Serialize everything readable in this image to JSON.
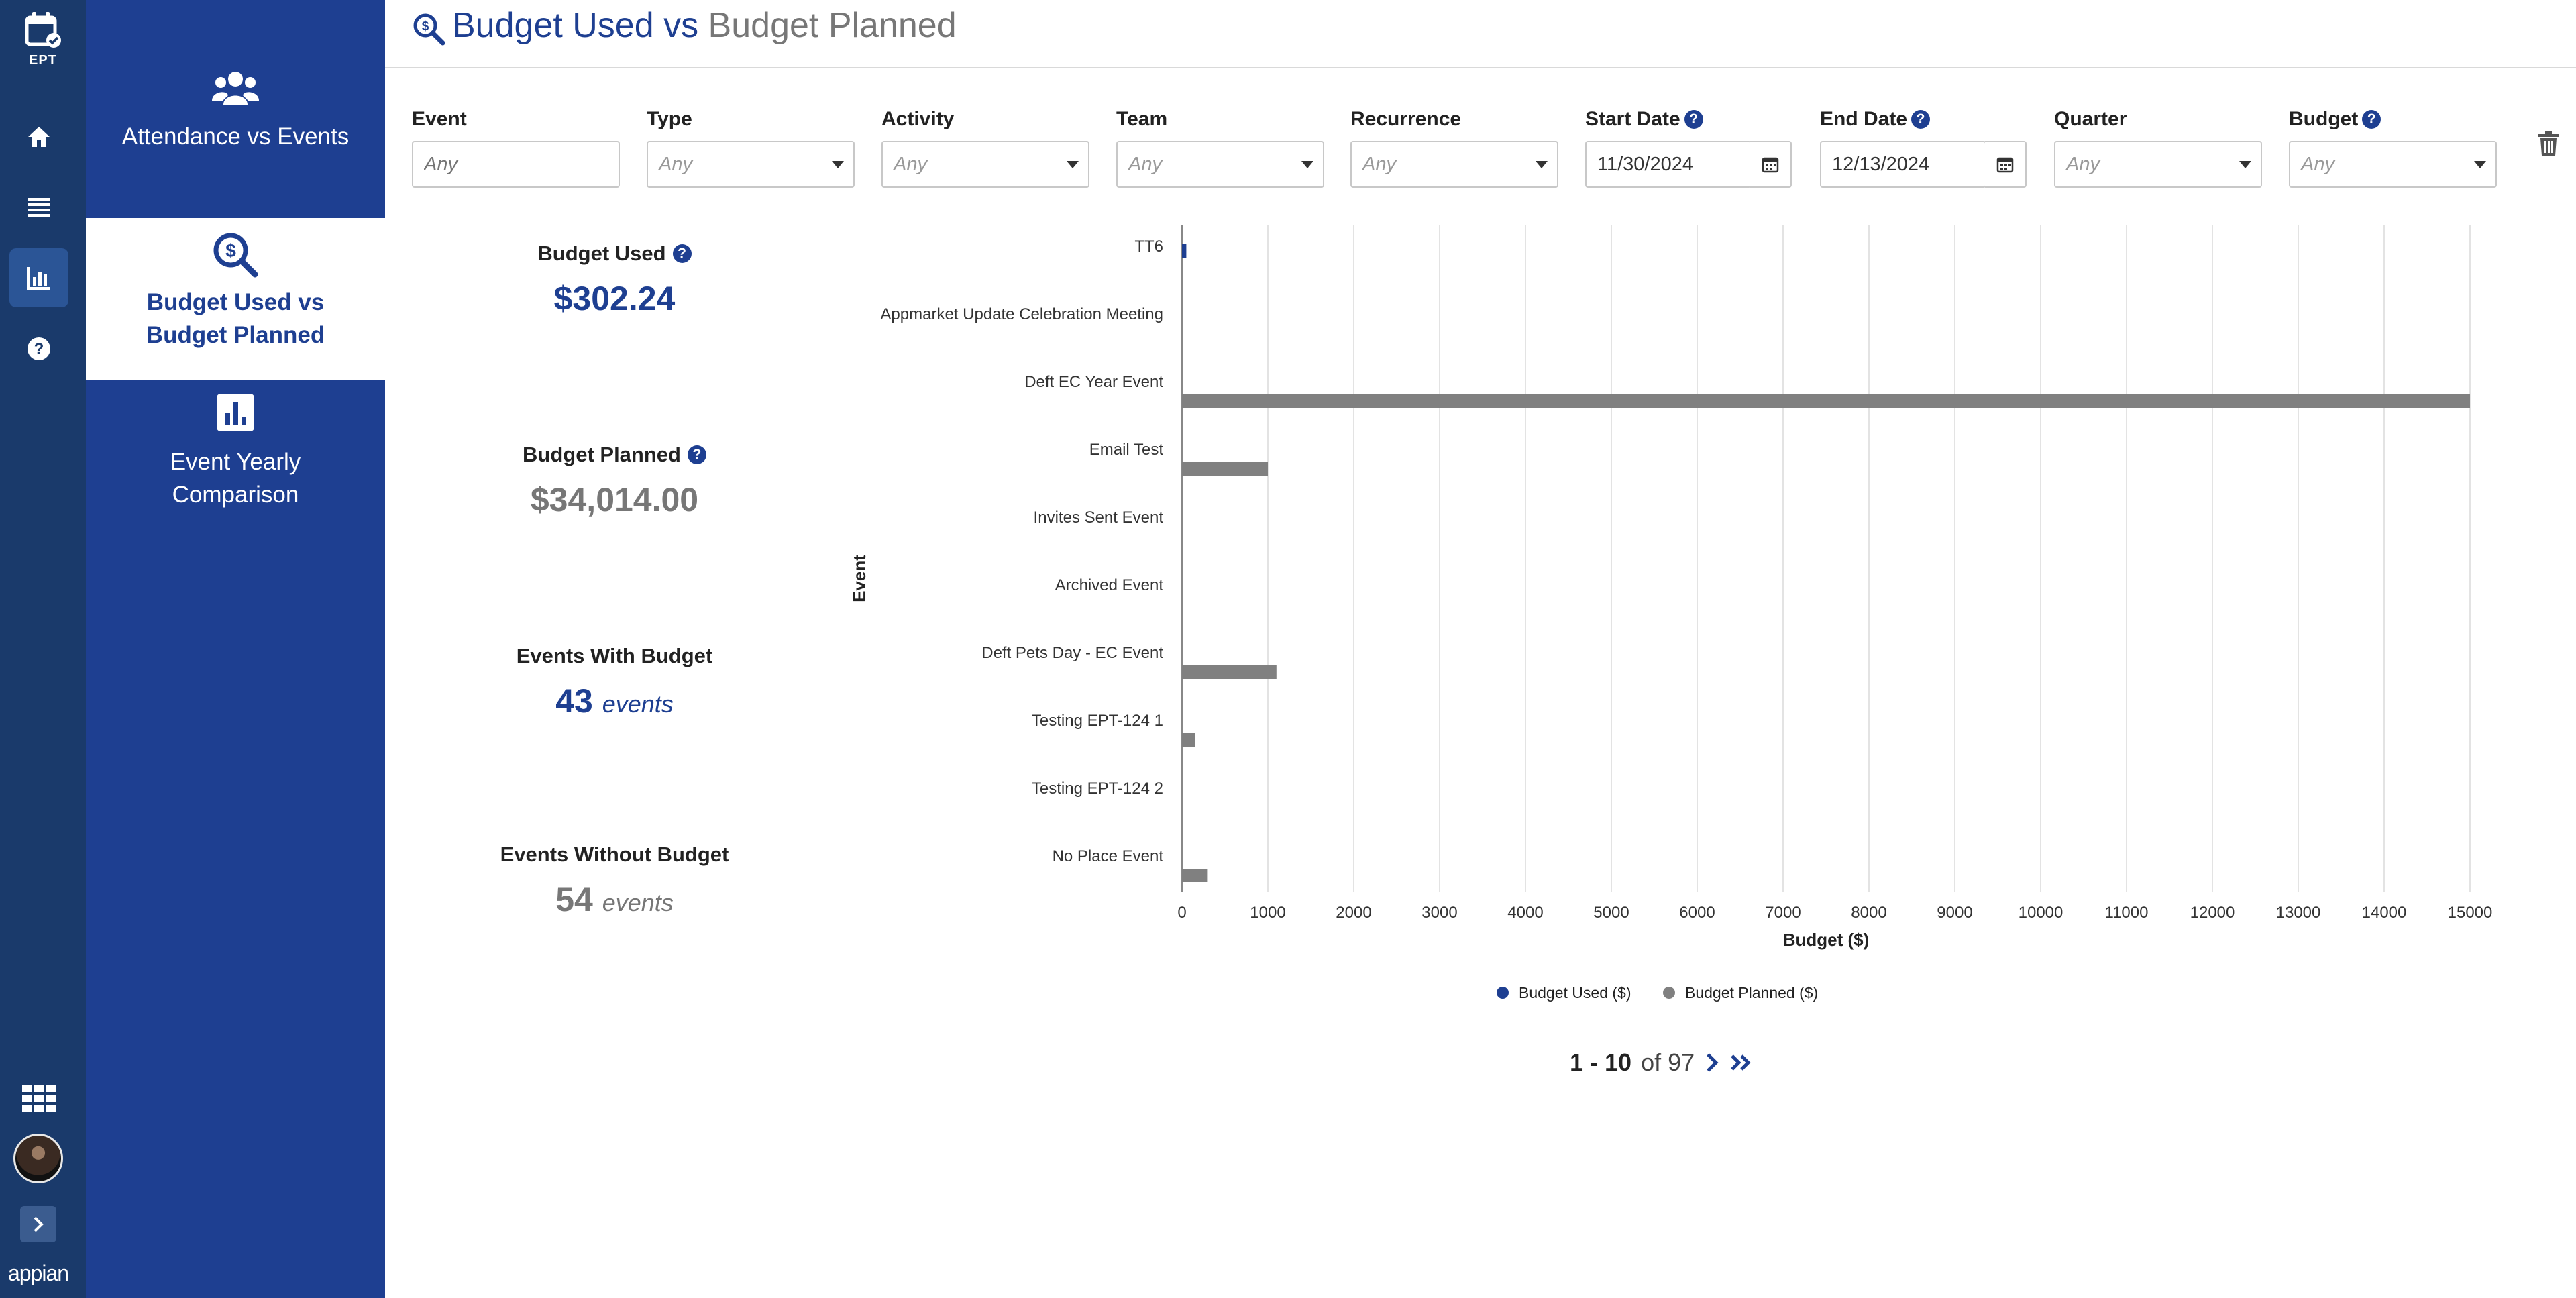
{
  "rail": {
    "app_label": "EPT",
    "brand": "appian"
  },
  "sidebar": {
    "items": [
      {
        "label": "Attendance vs Events",
        "icon": "users-icon"
      },
      {
        "label": "Budget Used vs Budget Planned",
        "icon": "search-dollar-icon",
        "active": true
      },
      {
        "label": "Event Yearly Comparison",
        "icon": "bar-chart-icon"
      }
    ]
  },
  "header": {
    "title_main": "Budget Used vs",
    "title_light": " Budget Planned"
  },
  "filters": {
    "event": {
      "label": "Event",
      "placeholder": "Any"
    },
    "type": {
      "label": "Type",
      "value": "Any"
    },
    "activity": {
      "label": "Activity",
      "value": "Any"
    },
    "team": {
      "label": "Team",
      "value": "Any"
    },
    "recurrence": {
      "label": "Recurrence",
      "value": "Any"
    },
    "start_date": {
      "label": "Start Date",
      "value": "11/30/2024"
    },
    "end_date": {
      "label": "End Date",
      "value": "12/13/2024"
    },
    "quarter": {
      "label": "Quarter",
      "value": "Any"
    },
    "budget": {
      "label": "Budget",
      "value": "Any"
    }
  },
  "kpis": {
    "budget_used": {
      "label": "Budget Used",
      "value": "$302.24"
    },
    "budget_planned": {
      "label": "Budget Planned",
      "value": "$34,014.00"
    },
    "events_with_budget": {
      "label": "Events With Budget",
      "value": "43",
      "unit": "events"
    },
    "events_without_budget": {
      "label": "Events Without Budget",
      "value": "54",
      "unit": "events"
    }
  },
  "chart_data": {
    "type": "bar",
    "orientation": "horizontal",
    "categories": [
      "TT6",
      "Appmarket Update Celebration Meeting",
      "Deft EC Year Event",
      "Email Test",
      "Invites Sent Event",
      "Archived Event",
      "Deft Pets Day - EC Event",
      "Testing EPT-124 1",
      "Testing EPT-124 2",
      "No Place Event"
    ],
    "series": [
      {
        "name": "Budget Used ($)",
        "color": "#1e3f91",
        "values": [
          50,
          0,
          0,
          0,
          0,
          0,
          0,
          0,
          0,
          0
        ]
      },
      {
        "name": "Budget Planned ($)",
        "color": "#808080",
        "values": [
          0,
          0,
          15000,
          1000,
          0,
          0,
          1100,
          150,
          0,
          300
        ]
      }
    ],
    "xlabel": "Budget ($)",
    "ylabel": "Event",
    "xlim": [
      0,
      15000
    ],
    "xticks": [
      0,
      1000,
      2000,
      3000,
      4000,
      5000,
      6000,
      7000,
      8000,
      9000,
      10000,
      11000,
      12000,
      13000,
      14000,
      15000
    ],
    "grid": "vertical",
    "legend_position": "bottom"
  },
  "pagination": {
    "range": "1 - 10",
    "of": "of 97"
  }
}
